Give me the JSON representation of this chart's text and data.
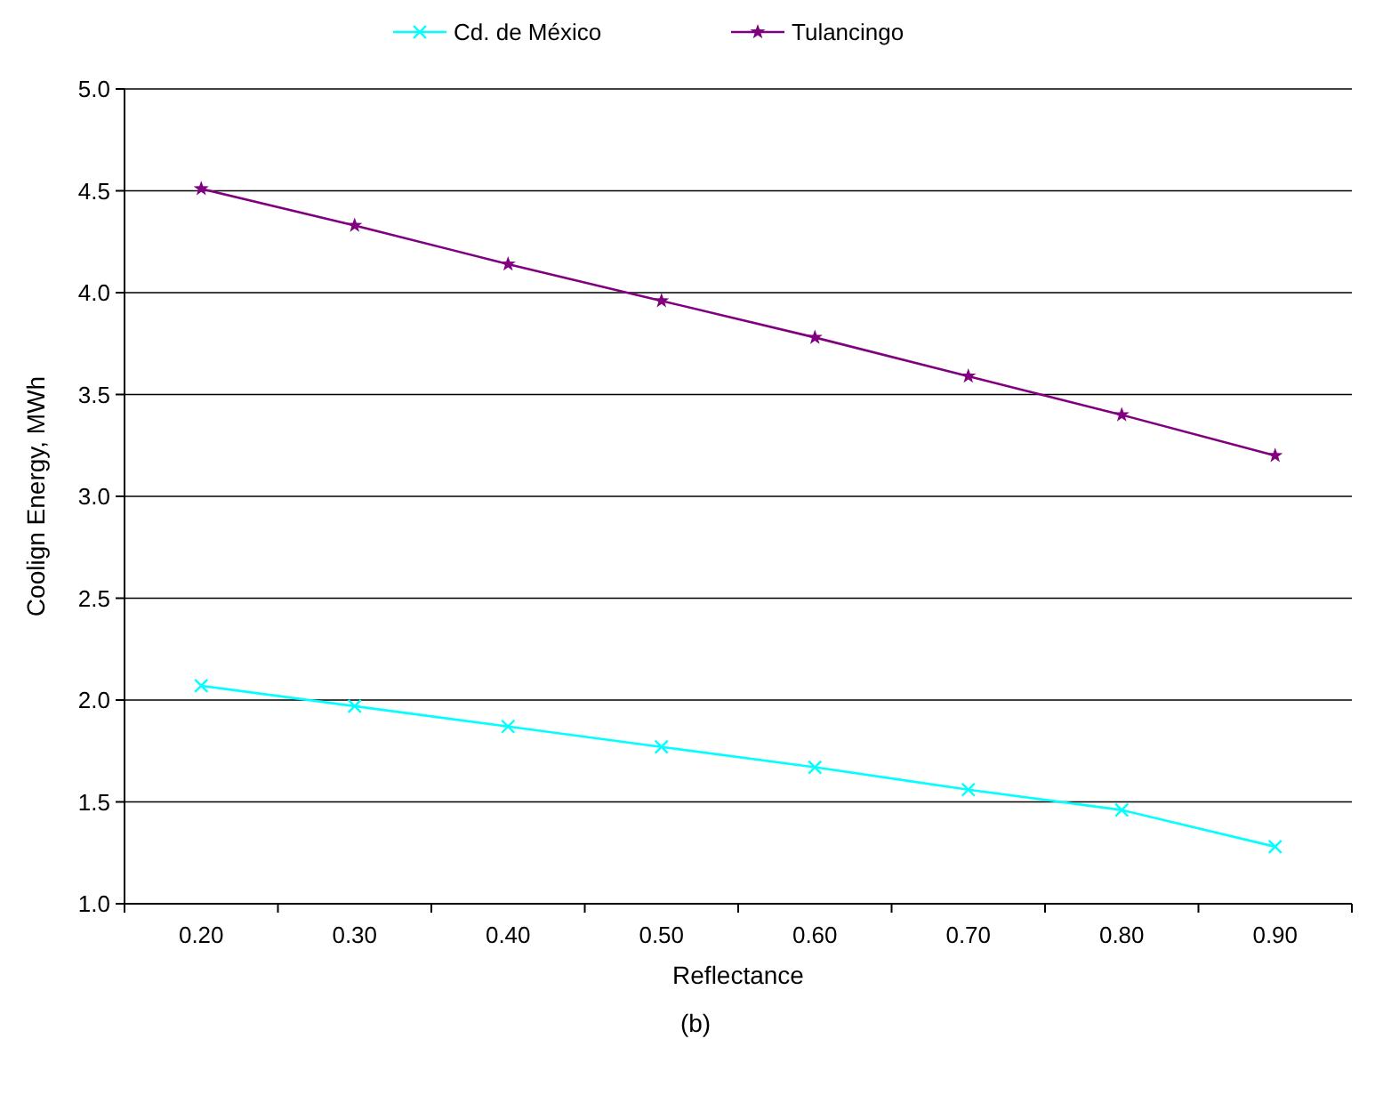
{
  "chart_data": {
    "type": "line",
    "xlabel": "Reflectance",
    "ylabel": "Coolign Energy, MWh",
    "categories": [
      "0.20",
      "0.30",
      "0.40",
      "0.50",
      "0.60",
      "0.70",
      "0.80",
      "0.90"
    ],
    "series": [
      {
        "name": "Cd. de México",
        "color": "#00ffff",
        "marker": "cross",
        "values": [
          2.07,
          1.97,
          1.87,
          1.77,
          1.67,
          1.56,
          1.46,
          1.28
        ]
      },
      {
        "name": "Tulancingo",
        "color": "#800080",
        "marker": "star",
        "values": [
          4.51,
          4.33,
          4.14,
          3.96,
          3.78,
          3.59,
          3.4,
          3.2
        ]
      }
    ],
    "ylim": [
      1,
      5
    ],
    "yticks": [
      {
        "value": 1,
        "label": "1.0"
      },
      {
        "value": 1.5,
        "label": "1.5"
      },
      {
        "value": 2,
        "label": "2.0"
      },
      {
        "value": 2.5,
        "label": "2.5"
      },
      {
        "value": 3,
        "label": "3.0"
      },
      {
        "value": 3.5,
        "label": "3.5"
      },
      {
        "value": 4,
        "label": "4.0"
      },
      {
        "value": 4.5,
        "label": "4.5"
      },
      {
        "value": 5,
        "label": "5.0"
      }
    ],
    "grid": "y",
    "legend": "top",
    "annotations": [
      "(b)"
    ]
  }
}
